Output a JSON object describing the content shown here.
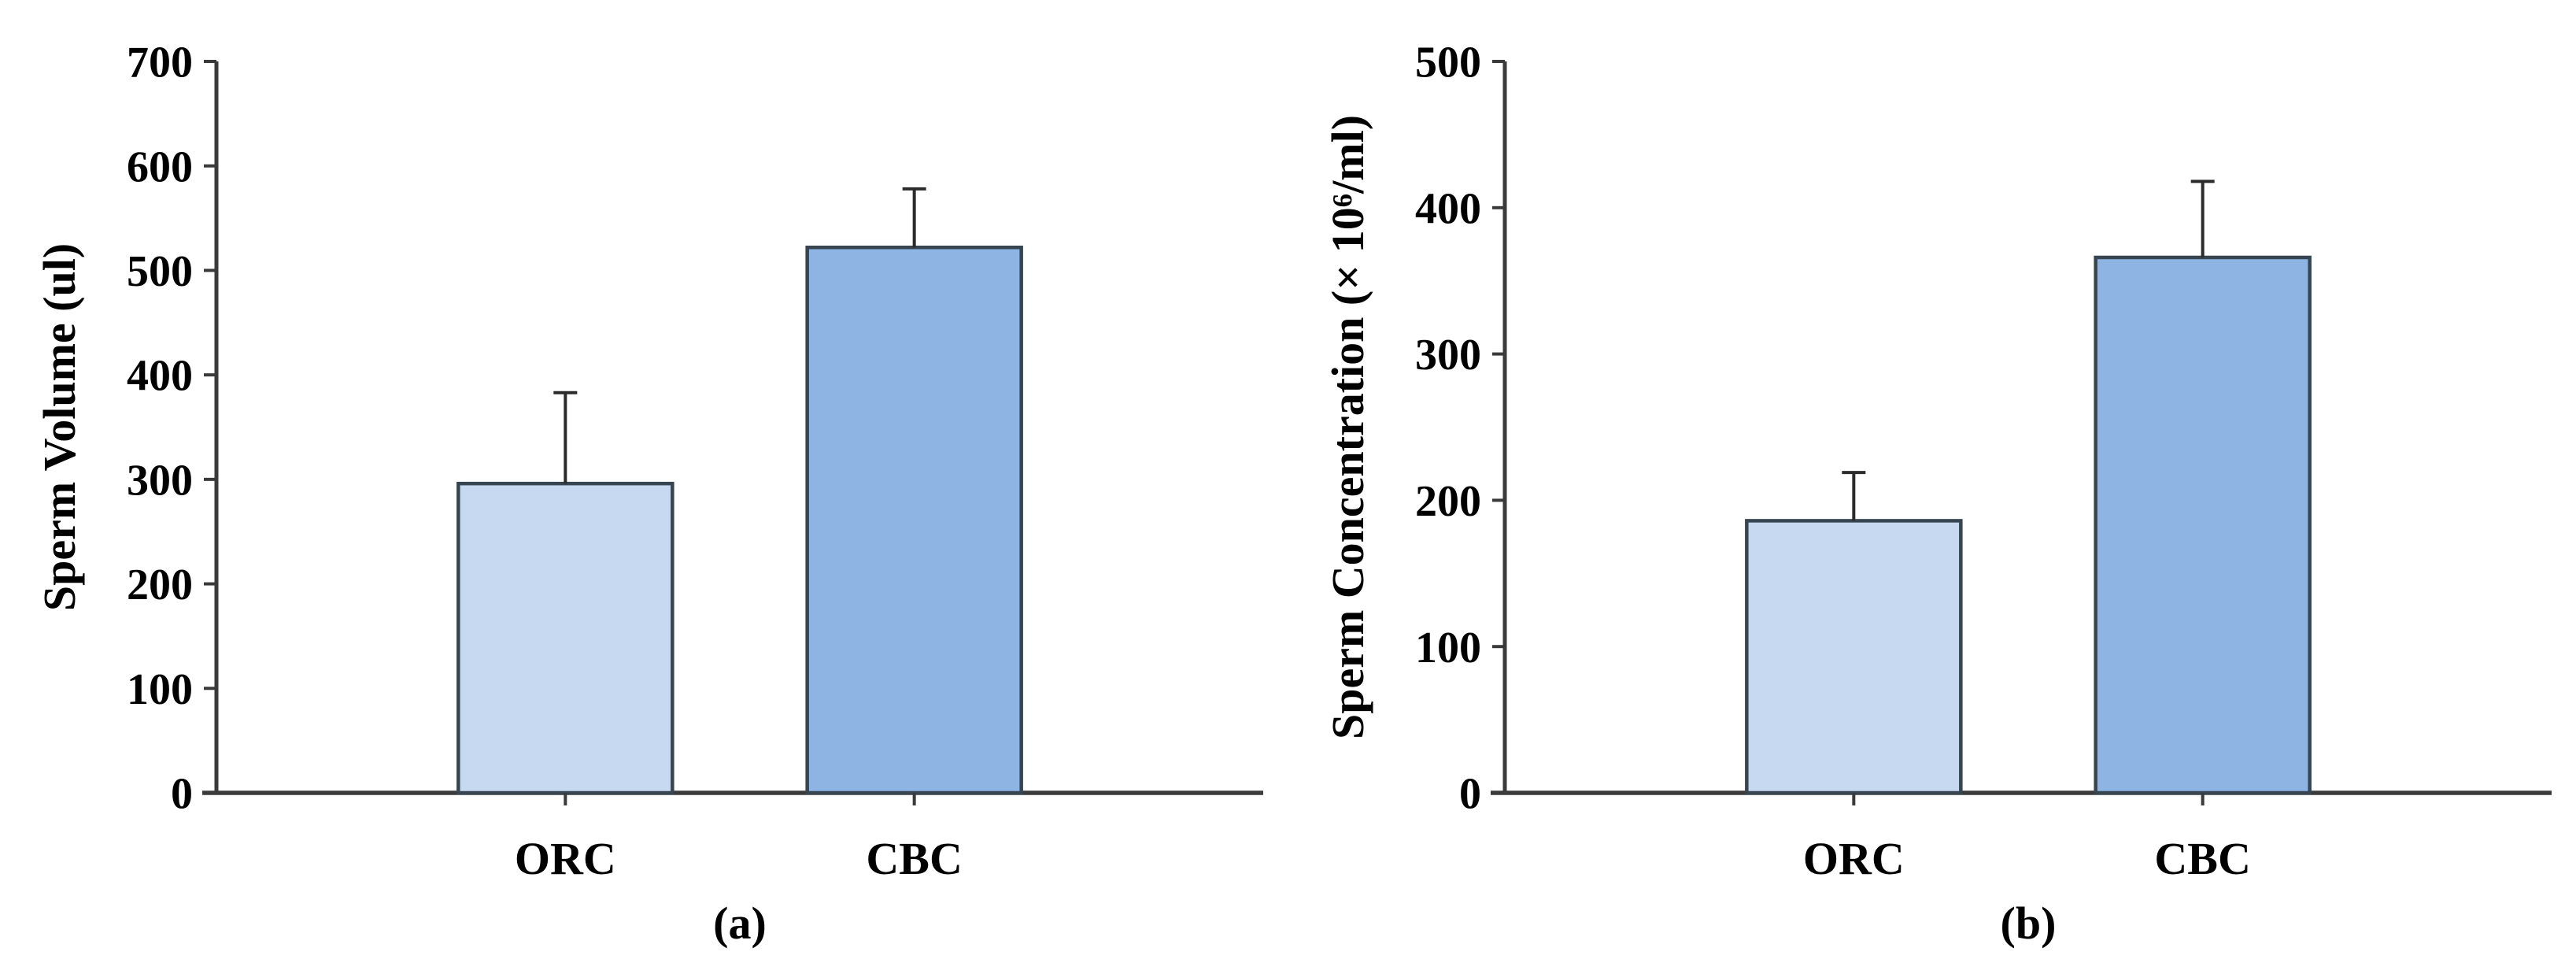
{
  "figure": {
    "background": "#ffffff",
    "panel_count": 2
  },
  "colors": {
    "bar_light_blue": "#c6d9f0",
    "bar_medium_blue": "#8db4e2",
    "bar_outline": "#36454f",
    "axis_line": "#3a3a3a",
    "error_bar": "#2b2b2b",
    "text": "#000000"
  },
  "chart_data": [
    {
      "type": "bar",
      "caption": "(a)",
      "title": "",
      "xlabel": "",
      "ylabel": "Sperm Volume (ul)",
      "categories": [
        "ORC",
        "CBC"
      ],
      "values": [
        296,
        522
      ],
      "errors_plus": [
        87,
        56
      ],
      "ylim": [
        0,
        700
      ],
      "ytick_step": 100,
      "yticks": [
        "0",
        "100",
        "200",
        "300",
        "400",
        "500",
        "600",
        "700"
      ],
      "bar_colors": [
        "#c6d9f0",
        "#8db4e2"
      ],
      "grid": false,
      "legend": null
    },
    {
      "type": "bar",
      "caption": "(b)",
      "title": "",
      "xlabel": "",
      "ylabel": "Sperm Concentration (× 10⁶/ml)",
      "categories": [
        "ORC",
        "CBC"
      ],
      "values": [
        186,
        366
      ],
      "errors_plus": [
        33,
        52
      ],
      "ylim": [
        0,
        500
      ],
      "ytick_step": 100,
      "yticks": [
        "0",
        "100",
        "200",
        "300",
        "400",
        "500"
      ],
      "bar_colors": [
        "#c6d9f0",
        "#8db4e2"
      ],
      "grid": false,
      "legend": null
    }
  ]
}
